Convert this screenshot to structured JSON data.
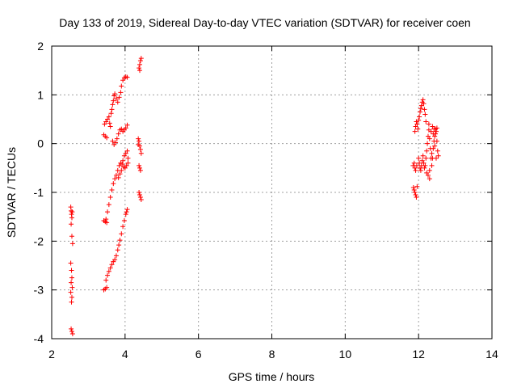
{
  "chart_data": {
    "type": "scatter",
    "title": "Day 133 of 2019, Sidereal Day-to-day VTEC variation (SDTVAR) for receiver coen",
    "xlabel": "GPS time / hours",
    "ylabel": "SDTVAR / TECUs",
    "xlim": [
      2,
      14
    ],
    "ylim": [
      -4,
      2
    ],
    "xticks": [
      2,
      4,
      6,
      8,
      10,
      12,
      14
    ],
    "yticks": [
      -4,
      -3,
      -2,
      -1,
      0,
      1,
      2
    ],
    "grid": true,
    "marker": "plus",
    "series_color": "#ff0000",
    "series": [
      {
        "points": [
          [
            2.52,
            -1.3
          ],
          [
            2.53,
            -1.38
          ],
          [
            2.54,
            -1.45
          ],
          [
            2.55,
            -1.52
          ],
          [
            2.56,
            -1.4
          ],
          [
            2.53,
            -1.65
          ],
          [
            2.55,
            -1.9
          ],
          [
            2.57,
            -2.05
          ],
          [
            2.52,
            -2.45
          ],
          [
            2.54,
            -2.6
          ],
          [
            2.55,
            -2.75
          ],
          [
            2.53,
            -2.85
          ],
          [
            2.56,
            -2.95
          ],
          [
            2.52,
            -3.05
          ],
          [
            2.55,
            -3.15
          ],
          [
            2.54,
            -3.25
          ],
          [
            2.53,
            -3.8
          ],
          [
            2.55,
            -3.85
          ],
          [
            2.57,
            -3.9
          ],
          [
            3.42,
            -3.0
          ],
          [
            3.46,
            -2.98
          ],
          [
            3.5,
            -2.95
          ],
          [
            3.48,
            -2.8
          ],
          [
            3.52,
            -2.7
          ],
          [
            3.56,
            -2.62
          ],
          [
            3.6,
            -2.55
          ],
          [
            3.64,
            -2.48
          ],
          [
            3.68,
            -2.42
          ],
          [
            3.72,
            -2.38
          ],
          [
            3.76,
            -2.3
          ],
          [
            3.8,
            -2.18
          ],
          [
            3.83,
            -2.08
          ],
          [
            3.86,
            -1.98
          ],
          [
            3.9,
            -1.85
          ],
          [
            3.94,
            -1.7
          ],
          [
            3.98,
            -1.58
          ],
          [
            4.02,
            -1.45
          ],
          [
            4.06,
            -1.35
          ],
          [
            4.04,
            -1.4
          ],
          [
            3.42,
            -1.58
          ],
          [
            3.46,
            -1.6
          ],
          [
            3.5,
            -1.62
          ],
          [
            3.48,
            -1.55
          ],
          [
            3.52,
            -1.4
          ],
          [
            3.56,
            -1.25
          ],
          [
            3.6,
            -1.1
          ],
          [
            3.64,
            -0.95
          ],
          [
            3.68,
            -0.82
          ],
          [
            3.72,
            -0.72
          ],
          [
            3.76,
            -0.65
          ],
          [
            3.8,
            -0.55
          ],
          [
            3.84,
            -0.45
          ],
          [
            3.88,
            -0.4
          ],
          [
            3.92,
            -0.42
          ],
          [
            3.96,
            -0.48
          ],
          [
            4.0,
            -0.5
          ],
          [
            4.04,
            -0.45
          ],
          [
            4.08,
            -0.4
          ],
          [
            3.86,
            -0.62
          ],
          [
            3.9,
            -0.55
          ],
          [
            3.94,
            -0.35
          ],
          [
            3.98,
            -0.25
          ],
          [
            4.02,
            -0.2
          ],
          [
            4.06,
            -0.15
          ],
          [
            4.08,
            -0.3
          ],
          [
            3.82,
            -0.7
          ],
          [
            3.42,
            0.18
          ],
          [
            3.46,
            0.15
          ],
          [
            3.5,
            0.12
          ],
          [
            3.44,
            0.4
          ],
          [
            3.48,
            0.45
          ],
          [
            3.52,
            0.5
          ],
          [
            3.56,
            0.55
          ],
          [
            3.58,
            0.42
          ],
          [
            3.6,
            0.35
          ],
          [
            3.62,
            0.62
          ],
          [
            3.64,
            0.7
          ],
          [
            3.66,
            0.8
          ],
          [
            3.68,
            0.88
          ],
          [
            3.7,
            0.98
          ],
          [
            3.72,
            1.02
          ],
          [
            3.76,
            0.92
          ],
          [
            3.8,
            0.85
          ],
          [
            3.84,
            0.95
          ],
          [
            3.88,
            1.05
          ],
          [
            3.9,
            1.18
          ],
          [
            3.94,
            1.3
          ],
          [
            3.98,
            1.35
          ],
          [
            4.02,
            1.37
          ],
          [
            4.06,
            1.36
          ],
          [
            3.66,
            0.05
          ],
          [
            3.7,
            -0.02
          ],
          [
            3.74,
            0.02
          ],
          [
            3.78,
            0.1
          ],
          [
            3.82,
            0.2
          ],
          [
            3.86,
            0.28
          ],
          [
            3.9,
            0.3
          ],
          [
            3.94,
            0.25
          ],
          [
            3.98,
            0.28
          ],
          [
            4.02,
            0.32
          ],
          [
            4.06,
            0.38
          ],
          [
            4.38,
            1.55
          ],
          [
            4.4,
            1.62
          ],
          [
            4.42,
            1.7
          ],
          [
            4.44,
            1.75
          ],
          [
            4.4,
            1.5
          ],
          [
            4.36,
            0.1
          ],
          [
            4.38,
            0.05
          ],
          [
            4.4,
            -0.05
          ],
          [
            4.42,
            -0.12
          ],
          [
            4.44,
            -0.2
          ],
          [
            4.38,
            -0.45
          ],
          [
            4.4,
            -0.5
          ],
          [
            4.42,
            -0.55
          ],
          [
            4.38,
            -1.0
          ],
          [
            4.4,
            -1.05
          ],
          [
            4.42,
            -1.1
          ],
          [
            4.44,
            -1.15
          ],
          [
            4.36,
            -0.02
          ],
          [
            11.85,
            -0.45
          ],
          [
            11.88,
            -0.4
          ],
          [
            11.9,
            -0.5
          ],
          [
            11.92,
            -0.55
          ],
          [
            11.95,
            -0.45
          ],
          [
            11.86,
            -0.9
          ],
          [
            11.88,
            -0.95
          ],
          [
            11.9,
            -1.0
          ],
          [
            11.92,
            -1.05
          ],
          [
            11.94,
            -1.1
          ],
          [
            11.96,
            -0.88
          ],
          [
            11.9,
            0.25
          ],
          [
            11.92,
            0.35
          ],
          [
            11.94,
            0.45
          ],
          [
            11.96,
            0.4
          ],
          [
            11.98,
            0.3
          ],
          [
            12.0,
            0.48
          ],
          [
            12.02,
            0.55
          ],
          [
            12.04,
            0.65
          ],
          [
            12.06,
            0.72
          ],
          [
            12.08,
            0.78
          ],
          [
            12.1,
            0.85
          ],
          [
            12.12,
            0.9
          ],
          [
            12.14,
            0.82
          ],
          [
            12.16,
            0.7
          ],
          [
            12.18,
            0.6
          ],
          [
            12.2,
            0.45
          ],
          [
            12.0,
            -0.3
          ],
          [
            12.02,
            -0.4
          ],
          [
            12.04,
            -0.5
          ],
          [
            12.06,
            -0.55
          ],
          [
            12.08,
            -0.45
          ],
          [
            12.1,
            -0.35
          ],
          [
            12.12,
            -0.25
          ],
          [
            12.14,
            -0.4
          ],
          [
            12.16,
            -0.5
          ],
          [
            12.18,
            -0.45
          ],
          [
            12.2,
            -0.3
          ],
          [
            12.22,
            -0.15
          ],
          [
            12.24,
            0.0
          ],
          [
            12.26,
            0.15
          ],
          [
            12.28,
            0.28
          ],
          [
            12.3,
            0.1
          ],
          [
            12.32,
            -0.1
          ],
          [
            12.34,
            -0.3
          ],
          [
            12.36,
            -0.45
          ],
          [
            12.38,
            -0.3
          ],
          [
            12.4,
            -0.1
          ],
          [
            12.42,
            0.05
          ],
          [
            12.44,
            0.15
          ],
          [
            12.46,
            0.3
          ],
          [
            12.48,
            0.25
          ],
          [
            12.5,
            0.05
          ],
          [
            12.52,
            -0.15
          ],
          [
            12.54,
            -0.25
          ],
          [
            12.22,
            -0.6
          ],
          [
            12.26,
            -0.65
          ],
          [
            12.3,
            -0.55
          ],
          [
            12.34,
            0.25
          ],
          [
            12.38,
            0.35
          ],
          [
            12.42,
            0.3
          ],
          [
            12.46,
            0.2
          ],
          [
            12.5,
            0.32
          ],
          [
            12.36,
            -0.2
          ],
          [
            12.44,
            -0.05
          ],
          [
            12.3,
            -0.72
          ],
          [
            12.28,
            0.4
          ],
          [
            12.4,
            0.2
          ],
          [
            12.48,
            -0.3
          ]
        ]
      }
    ]
  }
}
